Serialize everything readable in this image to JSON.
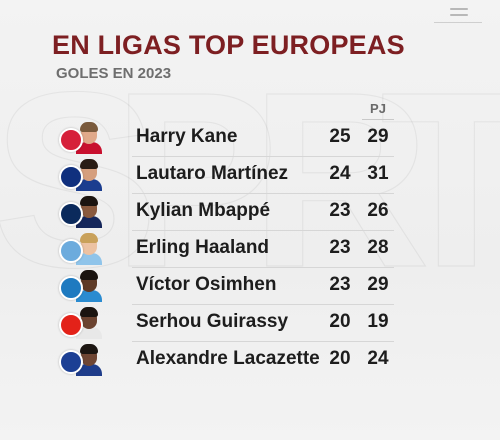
{
  "title": "EN LIGAS TOP EUROPEAS",
  "subtitle": "GOLES EN 2023",
  "columns": {
    "pj_label": "PJ"
  },
  "players": [
    {
      "name": "Harry Kane",
      "goals": "25",
      "pj": "29",
      "crest_color": "#d6203a",
      "shirt_color": "#c8102e",
      "skin": "#e0a98a",
      "hair": "#7a5a3c"
    },
    {
      "name": "Lautaro Martínez",
      "goals": "24",
      "pj": "31",
      "crest_color": "#10307e",
      "shirt_color": "#1b3d8f",
      "skin": "#d59f7e",
      "hair": "#2a1d15"
    },
    {
      "name": "Kylian Mbappé",
      "goals": "23",
      "pj": "26",
      "crest_color": "#0b2a5c",
      "shirt_color": "#15265a",
      "skin": "#8a5a3e",
      "hair": "#1b1410"
    },
    {
      "name": "Erling Haaland",
      "goals": "23",
      "pj": "28",
      "crest_color": "#6cabdd",
      "shirt_color": "#8fc4ea",
      "skin": "#ecc2a2",
      "hair": "#c9a15a"
    },
    {
      "name": "Víctor Osimhen",
      "goals": "23",
      "pj": "29",
      "crest_color": "#1e7ac0",
      "shirt_color": "#2a8bd0",
      "skin": "#5e3a26",
      "hair": "#1a1410"
    },
    {
      "name": "Serhou Guirassy",
      "goals": "20",
      "pj": "19",
      "crest_color": "#e32219",
      "shirt_color": "#e8e8e8",
      "skin": "#6b4330",
      "hair": "#1a1410"
    },
    {
      "name": "Alexandre Lacazette",
      "goals": "20",
      "pj": "24",
      "crest_color": "#1c3f94",
      "shirt_color": "#1e3c8a",
      "skin": "#6f4634",
      "hair": "#1c1612"
    }
  ],
  "watermark_letters": [
    "S",
    "P",
    "O",
    "R",
    "T"
  ],
  "icons": {
    "menu": "menu-icon"
  }
}
